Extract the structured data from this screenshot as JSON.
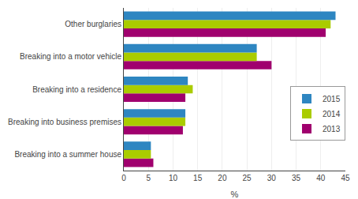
{
  "chart_data": {
    "type": "bar",
    "orientation": "horizontal",
    "categories": [
      "Breaking into a summer house",
      "Breaking into business premises",
      "Breaking into a residence",
      "Breaking into a motor vehicle",
      "Other burglaries"
    ],
    "series": [
      {
        "name": "2015",
        "color": "#2E86C1",
        "values": [
          5.5,
          12.5,
          13,
          27,
          43
        ]
      },
      {
        "name": "2014",
        "color": "#AACC00",
        "values": [
          5.5,
          12.5,
          14,
          27,
          42
        ]
      },
      {
        "name": "2013",
        "color": "#A0006E",
        "values": [
          6,
          12,
          12.5,
          30,
          41
        ]
      }
    ],
    "xlabel": "%",
    "xlim": [
      0,
      45
    ],
    "xticks": [
      0,
      5,
      10,
      15,
      20,
      25,
      30,
      35,
      40,
      45
    ],
    "grid": true,
    "legend": "center right"
  }
}
